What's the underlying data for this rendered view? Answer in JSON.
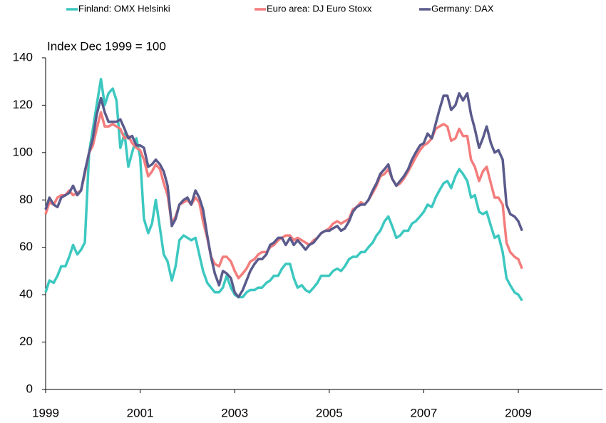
{
  "chart_data": {
    "type": "line",
    "title": "Index Dec 1999 = 100",
    "x": [
      1999,
      1999.08,
      1999.17,
      1999.25,
      1999.33,
      1999.42,
      1999.5,
      1999.58,
      1999.67,
      1999.75,
      1999.83,
      1999.92,
      2000,
      2000.08,
      2000.17,
      2000.25,
      2000.33,
      2000.42,
      2000.5,
      2000.58,
      2000.67,
      2000.75,
      2000.83,
      2000.92,
      2001,
      2001.08,
      2001.17,
      2001.25,
      2001.33,
      2001.42,
      2001.5,
      2001.58,
      2001.67,
      2001.75,
      2001.83,
      2001.92,
      2002,
      2002.08,
      2002.17,
      2002.25,
      2002.33,
      2002.42,
      2002.5,
      2002.58,
      2002.67,
      2002.75,
      2002.83,
      2002.92,
      2003,
      2003.08,
      2003.17,
      2003.25,
      2003.33,
      2003.42,
      2003.5,
      2003.58,
      2003.67,
      2003.75,
      2003.83,
      2003.92,
      2004,
      2004.08,
      2004.17,
      2004.25,
      2004.33,
      2004.42,
      2004.5,
      2004.58,
      2004.67,
      2004.75,
      2004.83,
      2004.92,
      2005,
      2005.08,
      2005.17,
      2005.25,
      2005.33,
      2005.42,
      2005.5,
      2005.58,
      2005.67,
      2005.75,
      2005.83,
      2005.92,
      2006,
      2006.08,
      2006.17,
      2006.25,
      2006.33,
      2006.42,
      2006.5,
      2006.58,
      2006.67,
      2006.75,
      2006.83,
      2006.92,
      2007,
      2007.08,
      2007.17,
      2007.25,
      2007.33,
      2007.42,
      2007.5,
      2007.58,
      2007.67,
      2007.75,
      2007.83,
      2007.92,
      2008,
      2008.08,
      2008.17,
      2008.25,
      2008.33,
      2008.42,
      2008.5,
      2008.58,
      2008.67,
      2008.75,
      2008.83,
      2008.92,
      2009,
      2009.08
    ],
    "series": [
      {
        "name": "Finland: OMX Helsinki",
        "color": "#3cc8c0",
        "values": [
          41,
          46,
          45,
          48,
          52,
          52,
          56,
          61,
          57,
          59,
          62,
          100,
          110,
          120,
          131,
          120,
          125,
          127,
          122,
          102,
          108,
          94,
          100,
          106,
          98,
          72,
          66,
          70,
          80,
          68,
          57,
          54,
          46,
          52,
          63,
          65,
          64,
          63,
          64,
          57,
          50,
          45,
          43,
          41,
          41,
          43,
          48,
          43,
          40,
          39,
          39,
          41,
          42,
          42,
          43,
          43,
          45,
          46,
          48,
          48,
          51,
          53,
          53,
          47,
          43,
          44,
          42,
          41,
          43,
          45,
          48,
          48,
          48,
          50,
          51,
          50,
          52,
          55,
          56,
          56,
          58,
          58,
          60,
          62,
          65,
          67,
          71,
          73,
          69,
          64,
          65,
          67,
          67,
          70,
          71,
          73,
          75,
          78,
          77,
          81,
          84,
          87,
          88,
          85,
          90,
          93,
          91,
          88,
          81,
          82,
          75,
          74,
          75,
          69,
          64,
          65,
          58,
          47,
          44,
          41,
          40,
          37.5
        ]
      },
      {
        "name": "Euro area: DJ Euro Stoxx",
        "color": "#f47c7c",
        "values": [
          74,
          79,
          78,
          81,
          82,
          82,
          84,
          82,
          83,
          84,
          91,
          100,
          103,
          110,
          117,
          111,
          111,
          112,
          111,
          110,
          106,
          107,
          104,
          102,
          101,
          97,
          90,
          92,
          95,
          93,
          87,
          82,
          70,
          73,
          78,
          79,
          80,
          78,
          81,
          79,
          71,
          64,
          56,
          53,
          52,
          56,
          56,
          54,
          50,
          47,
          49,
          51,
          54,
          55,
          57,
          58,
          58,
          60,
          61,
          63,
          64,
          65,
          65,
          63,
          64,
          63,
          62,
          61,
          63,
          64,
          66,
          67,
          68,
          70,
          71,
          70,
          71,
          72,
          76,
          77,
          79,
          78,
          80,
          83,
          86,
          90,
          91,
          93,
          89,
          86,
          87,
          89,
          92,
          95,
          98,
          101,
          103,
          104,
          106,
          110,
          111,
          112,
          111,
          105,
          106,
          110,
          107,
          107,
          97,
          94,
          88,
          92,
          94,
          87,
          81,
          81,
          78,
          62,
          58,
          56,
          55,
          51
        ]
      },
      {
        "name": "Germany: DAX",
        "color": "#5a5a8c",
        "values": [
          76,
          81,
          78,
          77,
          81,
          82,
          83,
          86,
          82,
          84,
          92,
          100,
          106,
          116,
          123,
          117,
          113,
          113,
          113,
          114,
          110,
          106,
          107,
          103,
          103,
          102,
          94,
          95,
          97,
          95,
          92,
          86,
          69,
          72,
          78,
          80,
          81,
          78,
          84,
          81,
          76,
          65,
          56,
          49,
          44,
          50,
          49,
          47,
          41,
          39,
          42,
          46,
          50,
          53,
          55,
          55,
          57,
          61,
          62,
          64,
          64,
          61,
          64,
          61,
          63,
          61,
          59,
          61,
          62,
          64,
          66,
          67,
          67,
          68,
          69,
          67,
          68,
          71,
          75,
          77,
          78,
          78,
          80,
          84,
          87,
          91,
          93,
          95,
          89,
          86,
          88,
          90,
          93,
          97,
          100,
          103,
          104,
          108,
          106,
          112,
          118,
          124,
          124,
          118,
          120,
          125,
          122,
          125,
          116,
          110,
          102,
          106,
          111,
          104,
          100,
          101,
          97,
          78,
          74,
          73,
          71,
          67
        ]
      }
    ],
    "xlim": [
      1999,
      2010.78
    ],
    "xticks": [
      1999,
      2001,
      2003,
      2005,
      2007,
      2009
    ],
    "ylim": [
      0,
      140
    ],
    "yticks": [
      0,
      20,
      40,
      60,
      80,
      100,
      120,
      140
    ],
    "grid": false,
    "legend": "top"
  }
}
